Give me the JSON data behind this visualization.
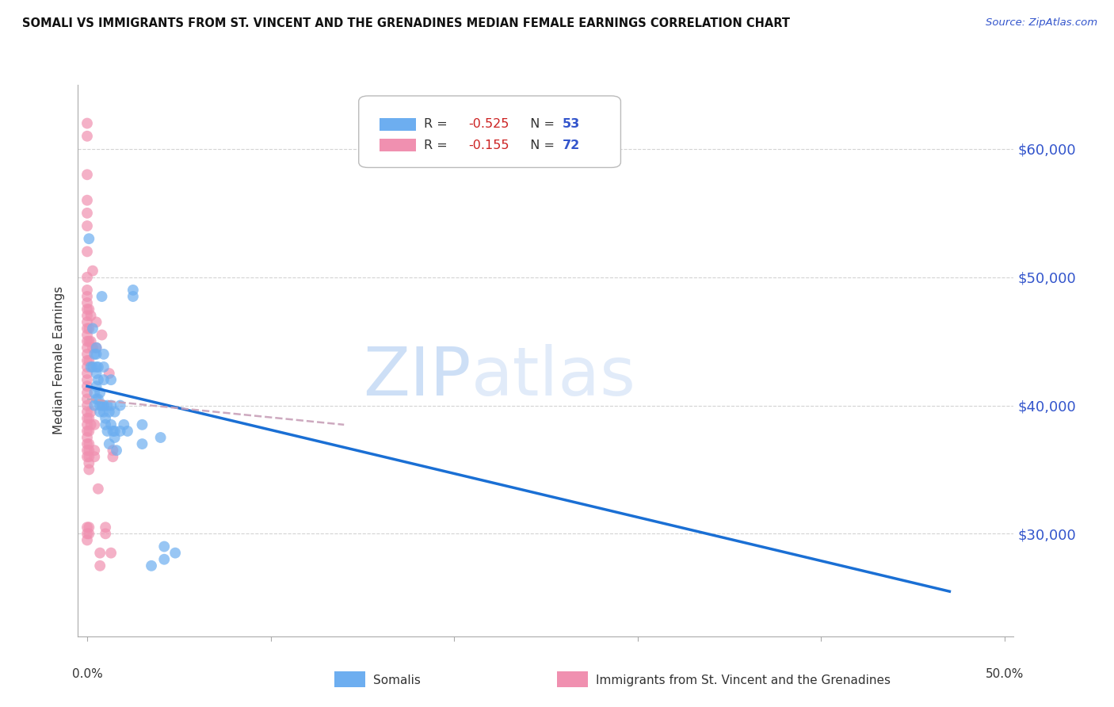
{
  "title": "SOMALI VS IMMIGRANTS FROM ST. VINCENT AND THE GRENADINES MEDIAN FEMALE EARNINGS CORRELATION CHART",
  "source": "Source: ZipAtlas.com",
  "ylabel": "Median Female Earnings",
  "watermark": "ZIPatlas",
  "legend_somali_R": "R = -0.525",
  "legend_somali_N": "N = 53",
  "legend_svt_R": "R = -0.155",
  "legend_svt_N": "N = 72",
  "legend_somali_label": "Somalis",
  "legend_svt_label": "Immigrants from St. Vincent and the Grenadines",
  "yticks": [
    30000,
    40000,
    50000,
    60000
  ],
  "ytick_labels": [
    "$30,000",
    "$40,000",
    "$50,000",
    "$60,000"
  ],
  "xlim": [
    -0.005,
    0.505
  ],
  "ylim": [
    22000,
    65000
  ],
  "somali_color": "#6daef0",
  "svt_color": "#f090b0",
  "somali_line_color": "#1a6fd4",
  "svt_line_color": "#c8a0b8",
  "grid_color": "#c8c8c8",
  "background": "#ffffff",
  "somali_line_x0": 0.0,
  "somali_line_y0": 41500,
  "somali_line_x1": 0.47,
  "somali_line_y1": 25500,
  "svt_line_x0": 0.0,
  "svt_line_y0": 40500,
  "svt_line_x1": 0.14,
  "svt_line_y1": 38500,
  "somali_points": [
    [
      0.001,
      53000
    ],
    [
      0.002,
      43000
    ],
    [
      0.003,
      43000
    ],
    [
      0.003,
      46000
    ],
    [
      0.004,
      44000
    ],
    [
      0.004,
      41000
    ],
    [
      0.004,
      40000
    ],
    [
      0.005,
      44500
    ],
    [
      0.005,
      44000
    ],
    [
      0.005,
      43000
    ],
    [
      0.005,
      42500
    ],
    [
      0.005,
      41500
    ],
    [
      0.005,
      40500
    ],
    [
      0.006,
      43000
    ],
    [
      0.006,
      42000
    ],
    [
      0.006,
      40500
    ],
    [
      0.007,
      41000
    ],
    [
      0.007,
      40000
    ],
    [
      0.007,
      39500
    ],
    [
      0.008,
      48500
    ],
    [
      0.008,
      40000
    ],
    [
      0.009,
      44000
    ],
    [
      0.009,
      43000
    ],
    [
      0.009,
      42000
    ],
    [
      0.009,
      40000
    ],
    [
      0.009,
      39500
    ],
    [
      0.01,
      39000
    ],
    [
      0.01,
      38500
    ],
    [
      0.011,
      40000
    ],
    [
      0.011,
      38000
    ],
    [
      0.012,
      39500
    ],
    [
      0.012,
      37000
    ],
    [
      0.013,
      42000
    ],
    [
      0.013,
      40000
    ],
    [
      0.013,
      38500
    ],
    [
      0.014,
      38000
    ],
    [
      0.015,
      39500
    ],
    [
      0.015,
      38000
    ],
    [
      0.015,
      37500
    ],
    [
      0.016,
      36500
    ],
    [
      0.018,
      40000
    ],
    [
      0.018,
      38000
    ],
    [
      0.02,
      38500
    ],
    [
      0.022,
      38000
    ],
    [
      0.025,
      49000
    ],
    [
      0.025,
      48500
    ],
    [
      0.03,
      38500
    ],
    [
      0.03,
      37000
    ],
    [
      0.035,
      27500
    ],
    [
      0.04,
      37500
    ],
    [
      0.042,
      29000
    ],
    [
      0.042,
      28000
    ],
    [
      0.048,
      28500
    ]
  ],
  "svt_points": [
    [
      0.0,
      62000
    ],
    [
      0.0,
      61000
    ],
    [
      0.0,
      58000
    ],
    [
      0.0,
      56000
    ],
    [
      0.0,
      55000
    ],
    [
      0.0,
      54000
    ],
    [
      0.0,
      52000
    ],
    [
      0.0,
      50000
    ],
    [
      0.0,
      49000
    ],
    [
      0.0,
      48500
    ],
    [
      0.0,
      48000
    ],
    [
      0.0,
      47500
    ],
    [
      0.0,
      47000
    ],
    [
      0.0,
      46500
    ],
    [
      0.0,
      46000
    ],
    [
      0.0,
      45500
    ],
    [
      0.0,
      45000
    ],
    [
      0.0,
      44500
    ],
    [
      0.0,
      44000
    ],
    [
      0.0,
      43500
    ],
    [
      0.0,
      43000
    ],
    [
      0.0,
      42500
    ],
    [
      0.0,
      42000
    ],
    [
      0.0,
      41500
    ],
    [
      0.0,
      41000
    ],
    [
      0.0,
      40500
    ],
    [
      0.0,
      40000
    ],
    [
      0.0,
      39500
    ],
    [
      0.0,
      39000
    ],
    [
      0.0,
      38500
    ],
    [
      0.0,
      38000
    ],
    [
      0.0,
      37500
    ],
    [
      0.0,
      37000
    ],
    [
      0.0,
      36500
    ],
    [
      0.0,
      36000
    ],
    [
      0.0,
      30500
    ],
    [
      0.0,
      30000
    ],
    [
      0.0,
      29500
    ],
    [
      0.001,
      47500
    ],
    [
      0.001,
      46000
    ],
    [
      0.001,
      45000
    ],
    [
      0.001,
      43500
    ],
    [
      0.001,
      39000
    ],
    [
      0.001,
      38000
    ],
    [
      0.001,
      37000
    ],
    [
      0.001,
      36500
    ],
    [
      0.001,
      36000
    ],
    [
      0.001,
      35500
    ],
    [
      0.001,
      35000
    ],
    [
      0.001,
      30500
    ],
    [
      0.001,
      30000
    ],
    [
      0.002,
      47000
    ],
    [
      0.002,
      45000
    ],
    [
      0.002,
      39500
    ],
    [
      0.002,
      38500
    ],
    [
      0.003,
      50500
    ],
    [
      0.003,
      44500
    ],
    [
      0.004,
      38500
    ],
    [
      0.004,
      36500
    ],
    [
      0.004,
      36000
    ],
    [
      0.005,
      46500
    ],
    [
      0.005,
      44500
    ],
    [
      0.006,
      33500
    ],
    [
      0.007,
      28500
    ],
    [
      0.007,
      27500
    ],
    [
      0.008,
      45500
    ],
    [
      0.01,
      30500
    ],
    [
      0.01,
      30000
    ],
    [
      0.012,
      42500
    ],
    [
      0.013,
      28500
    ],
    [
      0.014,
      36500
    ],
    [
      0.014,
      36000
    ]
  ]
}
